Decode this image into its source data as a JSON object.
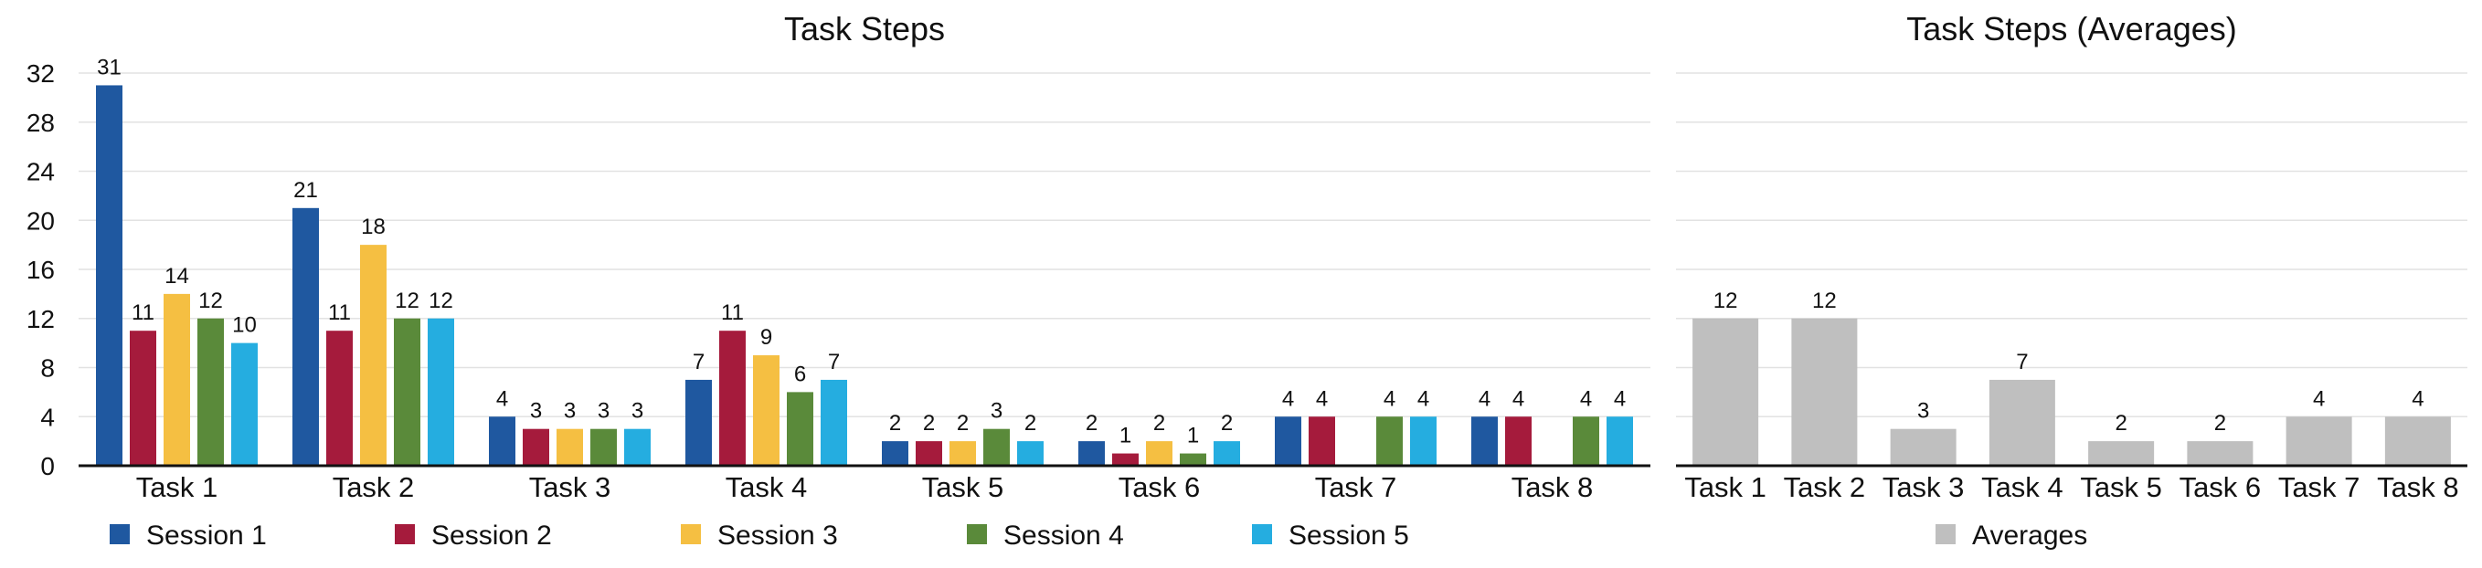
{
  "chart_data": [
    {
      "type": "bar",
      "title": "Task Steps",
      "categories": [
        "Task 1",
        "Task 2",
        "Task 3",
        "Task 4",
        "Task 5",
        "Task 6",
        "Task 7",
        "Task 8"
      ],
      "series": [
        {
          "name": "Session 1",
          "color": "#1f58a0",
          "values": [
            31,
            21,
            4,
            7,
            2,
            2,
            4,
            4
          ]
        },
        {
          "name": "Session 2",
          "color": "#a51b3c",
          "values": [
            11,
            11,
            3,
            11,
            2,
            1,
            4,
            4
          ]
        },
        {
          "name": "Session 3",
          "color": "#f5bf42",
          "values": [
            14,
            18,
            3,
            9,
            2,
            2,
            null,
            null
          ]
        },
        {
          "name": "Session 4",
          "color": "#5a8a3a",
          "values": [
            12,
            12,
            3,
            6,
            3,
            1,
            4,
            4
          ]
        },
        {
          "name": "Session 5",
          "color": "#25ade0",
          "values": [
            10,
            12,
            3,
            7,
            2,
            2,
            4,
            4
          ]
        }
      ],
      "ylim": [
        0,
        32
      ],
      "yticks": [
        0,
        4,
        8,
        12,
        16,
        20,
        24,
        28,
        32
      ],
      "grid": true,
      "legend": "bottom"
    },
    {
      "type": "bar",
      "title": "Task Steps (Averages)",
      "categories": [
        "Task 1",
        "Task 2",
        "Task 3",
        "Task 4",
        "Task 5",
        "Task 6",
        "Task 7",
        "Task 8"
      ],
      "series": [
        {
          "name": "Averages",
          "color": "#bfbfbf",
          "values": [
            12,
            12,
            3,
            7,
            2,
            2,
            4,
            4
          ]
        }
      ],
      "ylim": [
        0,
        32
      ],
      "grid": true,
      "legend": "bottom"
    }
  ]
}
